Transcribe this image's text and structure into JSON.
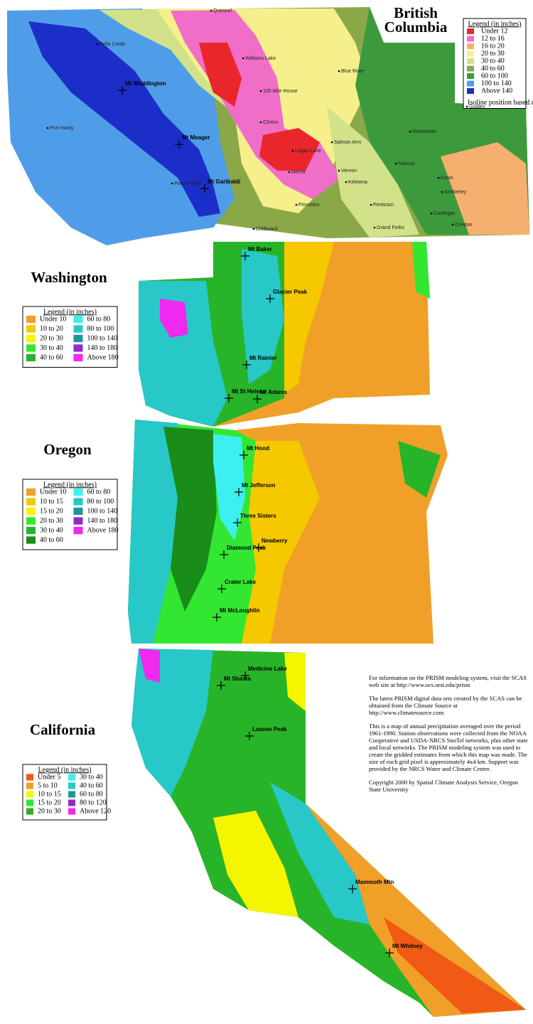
{
  "regions": [
    {
      "title_lines": [
        "British",
        "Columbia"
      ],
      "legend": {
        "title": "Legend (in inches)",
        "items": [
          {
            "label": "Under 12",
            "color": "#e8262b"
          },
          {
            "label": "12 to 16",
            "color": "#f06ec8"
          },
          {
            "label": "16 to 20",
            "color": "#f5b070"
          },
          {
            "label": "20 to 30",
            "color": "#f5f08c"
          },
          {
            "label": "30 to 40",
            "color": "#d2e28a"
          },
          {
            "label": "40 to 60",
            "color": "#8aa848"
          },
          {
            "label": "60 to 100",
            "color": "#3c9a3c"
          },
          {
            "label": "100 to 140",
            "color": "#4f9de8"
          },
          {
            "label": "Above 140",
            "color": "#1c2ec8"
          }
        ],
        "note": "Isoline position based upon very limited data"
      },
      "peaks": [
        "Mt Waddington",
        "Mt Meager",
        "Mt Garibaldi"
      ],
      "places": [
        "Quesnel",
        "Williams Lake",
        "100 Mile House",
        "Clinton",
        "Logan Lake",
        "Merritt",
        "Vernon",
        "Kelowna",
        "Penticton",
        "Princeton",
        "Blue River",
        "Revelstoke",
        "Nakusp",
        "Kaslo",
        "Castlegar",
        "Creston",
        "Chilliwack",
        "Powell River",
        "Bella Coola",
        "Port Hardy",
        "Grand Forks",
        "Salmon Arm",
        "Kimberley",
        "Golden"
      ]
    },
    {
      "title_lines": [
        "Washington"
      ],
      "legend": {
        "title": "Legend (in inches)",
        "items": [
          {
            "label": "Under 10",
            "color": "#f0a028"
          },
          {
            "label": "10 to 20",
            "color": "#f5c800"
          },
          {
            "label": "20 to 30",
            "color": "#f5f500"
          },
          {
            "label": "30 to 40",
            "color": "#32e632"
          },
          {
            "label": "40 to 60",
            "color": "#28b428"
          },
          {
            "label": "60 to 80",
            "color": "#3cf0f0"
          },
          {
            "label": "80 to 100",
            "color": "#28c8c8"
          },
          {
            "label": "100 to 140",
            "color": "#1e9696"
          },
          {
            "label": "140 to 180",
            "color": "#9628c8"
          },
          {
            "label": "Above 180",
            "color": "#f028f0"
          }
        ]
      },
      "peaks": [
        "Mt Baker",
        "Glacier Peak",
        "Mt Rainier",
        "Mt St Helens",
        "Mt Adams"
      ]
    },
    {
      "title_lines": [
        "Oregon"
      ],
      "legend": {
        "title": "Legend (in inches)",
        "items": [
          {
            "label": "Under 10",
            "color": "#f0a028"
          },
          {
            "label": "10 to 15",
            "color": "#f5c800"
          },
          {
            "label": "15 to 20",
            "color": "#f5f500"
          },
          {
            "label": "20 to 30",
            "color": "#32e632"
          },
          {
            "label": "30 to 40",
            "color": "#28b428"
          },
          {
            "label": "40 to 60",
            "color": "#1a8c1a"
          },
          {
            "label": "60 to 80",
            "color": "#3cf0f0"
          },
          {
            "label": "80 to 100",
            "color": "#28c8c8"
          },
          {
            "label": "100 to 140",
            "color": "#1e9696"
          },
          {
            "label": "140 to 180",
            "color": "#9628c8"
          },
          {
            "label": "Above 180",
            "color": "#f028f0"
          }
        ]
      },
      "peaks": [
        "Mt Hood",
        "Mt Jefferson",
        "Three Sisters",
        "Newberry",
        "Diamond Peak",
        "Crater Lake",
        "Mt McLoughlin"
      ]
    },
    {
      "title_lines": [
        "California"
      ],
      "legend": {
        "title": "Legend (in inches)",
        "items": [
          {
            "label": "Under 5",
            "color": "#f05a14"
          },
          {
            "label": "5 to 10",
            "color": "#f0a028"
          },
          {
            "label": "10 to 15",
            "color": "#f5f500"
          },
          {
            "label": "15 to 20",
            "color": "#32e632"
          },
          {
            "label": "20 to 30",
            "color": "#28b428"
          },
          {
            "label": "30 to 40",
            "color": "#3cf0f0"
          },
          {
            "label": "40 to 60",
            "color": "#28c8c8"
          },
          {
            "label": "60 to 80",
            "color": "#1e9696"
          },
          {
            "label": "80 to 120",
            "color": "#9628c8"
          },
          {
            "label": "Above 120",
            "color": "#f028f0"
          }
        ]
      },
      "peaks": [
        "Mt Shasta",
        "Medicine Lake",
        "Lassen Peak",
        "Mammoth Mtn",
        "Mt Whitney"
      ]
    }
  ],
  "info": [
    "For information on the PRISM modeling system, visit the SCAS web site at http://www.ocs.orst.edu/prism",
    "The latest PRISM digital data sets created by the SCAS can be obtained from the Climate Source at http://www.climatesource.com",
    "This is a map of annual precipitation averaged over the period 1961-1990. Station observations were collected from the NOAA Cooperative and USDA-NRCS SnoTel networks, plus other state and local networks. The PRISM modeling system was used to create the gridded estimates from which this map was made. The size of each grid pixel is approximately 4x4 km. Support was provided by the NRCS Water and Climate Center.",
    "Copyright 2000 by Spatial Climate Analysis Service, Oregon State University"
  ]
}
